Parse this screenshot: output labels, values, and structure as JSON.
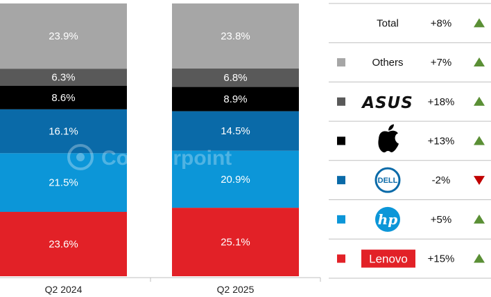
{
  "chart_data": {
    "type": "bar",
    "stacked": true,
    "normalized": true,
    "categories": [
      "Q2 2024",
      "Q2 2025"
    ],
    "series": [
      {
        "name": "Lenovo",
        "color": "#e22127",
        "values": [
          23.6,
          25.1
        ],
        "labels": [
          "23.6%",
          "25.1%"
        ],
        "change": "+15%",
        "direction": "up"
      },
      {
        "name": "HP",
        "color": "#0c96d8",
        "values": [
          21.5,
          20.9
        ],
        "labels": [
          "21.5%",
          "20.9%"
        ],
        "change": "+5%",
        "direction": "up"
      },
      {
        "name": "Dell",
        "color": "#0a6aa8",
        "values": [
          16.1,
          14.5
        ],
        "labels": [
          "16.1%",
          "14.5%"
        ],
        "change": "-2%",
        "direction": "down"
      },
      {
        "name": "Apple",
        "color": "#000000",
        "values": [
          8.6,
          8.9
        ],
        "labels": [
          "8.6%",
          "8.9%"
        ],
        "change": "+13%",
        "direction": "up"
      },
      {
        "name": "ASUS",
        "color": "#595959",
        "values": [
          6.3,
          6.8
        ],
        "labels": [
          "6.3%",
          "6.8%"
        ],
        "change": "+18%",
        "direction": "up"
      },
      {
        "name": "Others",
        "color": "#a6a6a6",
        "values": [
          23.9,
          23.8
        ],
        "labels": [
          "23.9%",
          "23.8%"
        ],
        "change": "+7%",
        "direction": "up"
      }
    ],
    "total": {
      "label": "Total",
      "change": "+8%",
      "direction": "up"
    },
    "logo_text": {
      "asus": "ASUS",
      "dell": "DELL",
      "hp": "hp",
      "lenovo": "Lenovo"
    },
    "legend_placement": "right",
    "colors": {
      "up_arrow": "#5a8f35",
      "down_arrow": "#c00000"
    },
    "watermark": "Counterpoint",
    "grid": false
  }
}
